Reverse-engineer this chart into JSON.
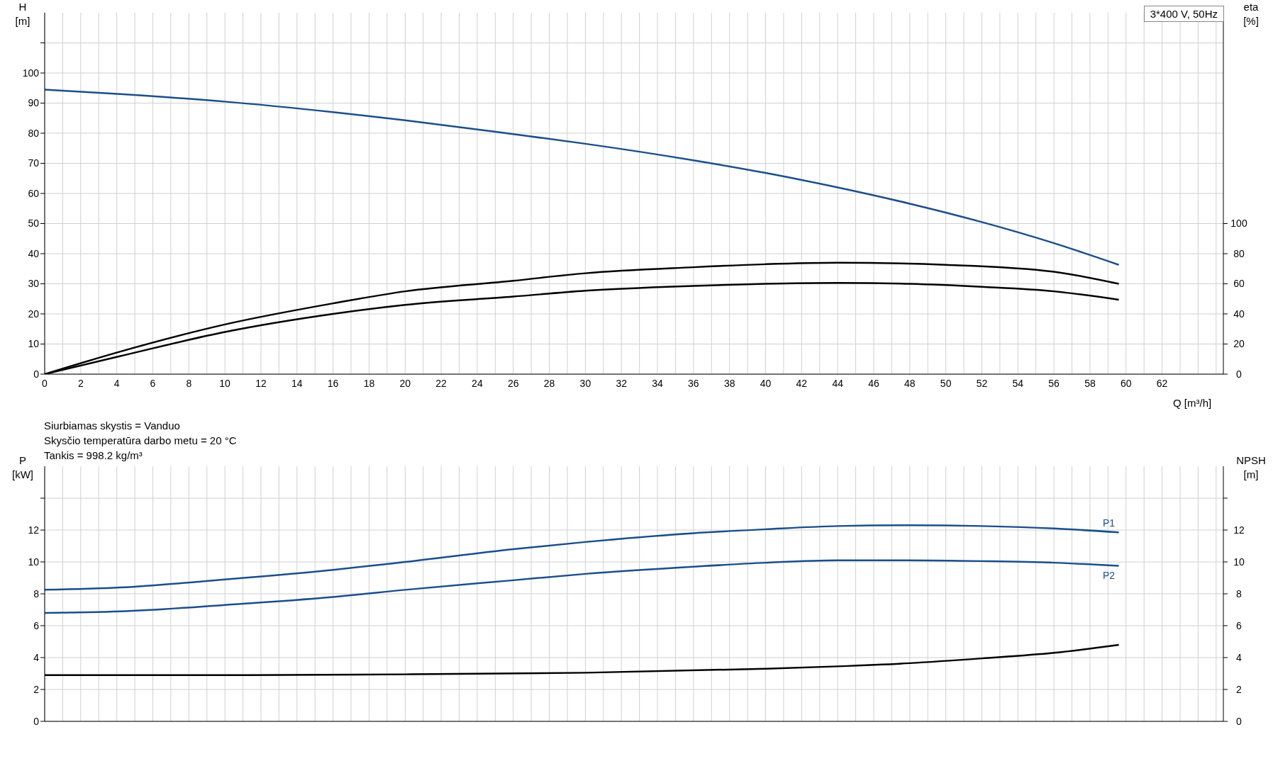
{
  "chart_data": [
    {
      "type": "line",
      "title": "3*400 V, 50Hz",
      "xlabel": "Q [m³/h]",
      "ylabel": "H [m]",
      "y2label": "eta [%]",
      "annotations": [
        "Siurbiamas skystis = Vanduo",
        "Skysčio temperatūra darbo metu = 20 °C",
        "Tankis = 998.2 kg/m³"
      ],
      "xlim": [
        0,
        65.4
      ],
      "xticks": [
        0,
        {
          "value": 1,
          "label": null
        },
        2,
        {
          "value": 3,
          "label": null
        },
        4,
        {
          "value": 5,
          "label": null
        },
        6,
        {
          "value": 7,
          "label": null
        },
        8,
        {
          "value": 9,
          "label": null
        },
        10,
        {
          "value": 11,
          "label": null
        },
        12,
        {
          "value": 13,
          "label": null
        },
        14,
        {
          "value": 15,
          "label": null
        },
        16,
        {
          "value": 17,
          "label": null
        },
        18,
        {
          "value": 19,
          "label": null
        },
        20,
        {
          "value": 21,
          "label": null
        },
        22,
        {
          "value": 23,
          "label": null
        },
        24,
        {
          "value": 25,
          "label": null
        },
        26,
        {
          "value": 27,
          "label": null
        },
        28,
        {
          "value": 29,
          "label": null
        },
        30,
        {
          "value": 31,
          "label": null
        },
        32,
        {
          "value": 33,
          "label": null
        },
        34,
        {
          "value": 35,
          "label": null
        },
        36,
        {
          "value": 37,
          "label": null
        },
        38,
        {
          "value": 39,
          "label": null
        },
        40,
        {
          "value": 41,
          "label": null
        },
        42,
        {
          "value": 43,
          "label": null
        },
        44,
        {
          "value": 45,
          "label": null
        },
        46,
        {
          "value": 47,
          "label": null
        },
        48,
        {
          "value": 49,
          "label": null
        },
        50,
        {
          "value": 51,
          "label": null
        },
        52,
        {
          "value": 53,
          "label": null
        },
        54,
        {
          "value": 55,
          "label": null
        },
        56,
        {
          "value": 57,
          "label": null
        },
        58,
        {
          "value": 59,
          "label": null
        },
        60,
        {
          "value": 61,
          "label": null
        },
        62,
        {
          "value": 63,
          "label": null
        },
        {
          "value": 64,
          "label": null
        },
        {
          "value": 65,
          "label": null
        }
      ],
      "ylim": [
        0,
        120
      ],
      "yticks": [
        0,
        10,
        20,
        30,
        40,
        50,
        60,
        70,
        80,
        90,
        100,
        {
          "value": 110,
          "label": null
        }
      ],
      "y2lim": [
        0,
        240
      ],
      "y2ticks": [
        0,
        20,
        40,
        60,
        80,
        100
      ],
      "grid": true,
      "legend": false,
      "marker": "none",
      "line_style": "solid",
      "series": [
        {
          "color": "#1a4f8a",
          "x": [
            0,
            4.2,
            10,
            16,
            20,
            26,
            30,
            36,
            40,
            44,
            48,
            52,
            56,
            59.6
          ],
          "values": [
            94.5,
            93,
            90.5,
            87,
            84.3,
            79.7,
            76.5,
            71,
            66.8,
            62,
            56.6,
            50.5,
            43.5,
            36.3
          ]
        },
        {
          "color": "#000000",
          "axis": "y2",
          "x": [
            0,
            4.2,
            10,
            16,
            20,
            26,
            30,
            36,
            40,
            44,
            50,
            56,
            59.6
          ],
          "values": [
            0,
            15,
            33,
            47,
            55,
            62,
            67,
            71,
            73,
            74,
            72.6,
            68,
            60
          ]
        },
        {
          "color": "#000000",
          "axis": "y2",
          "x": [
            0,
            4.2,
            10,
            16,
            20,
            26,
            30,
            36,
            40,
            44,
            48,
            52,
            56,
            59.6
          ],
          "values": [
            0,
            12,
            28,
            40,
            46,
            51.5,
            55.4,
            58.6,
            60,
            60.6,
            60,
            58,
            55,
            49.4
          ]
        }
      ]
    },
    {
      "type": "line",
      "ylabel": "P [kW]",
      "y2label": "NPSH [m]",
      "tick_labels": "y",
      "xlim": [
        0,
        65.4
      ],
      "xticks": [
        0,
        1,
        2,
        3,
        4,
        5,
        6,
        7,
        8,
        9,
        10,
        11,
        12,
        13,
        14,
        15,
        16,
        17,
        18,
        19,
        20,
        21,
        22,
        23,
        24,
        25,
        26,
        27,
        28,
        29,
        30,
        31,
        32,
        33,
        34,
        35,
        36,
        37,
        38,
        39,
        40,
        41,
        42,
        43,
        44,
        45,
        46,
        47,
        48,
        49,
        50,
        51,
        52,
        53,
        54,
        55,
        56,
        57,
        58,
        59,
        60,
        61,
        62,
        63,
        64,
        65
      ],
      "ylim": [
        0,
        16
      ],
      "yticks": [
        0,
        2,
        4,
        6,
        8,
        10,
        12,
        {
          "value": 14,
          "label": null
        }
      ],
      "y2lim": [
        0,
        16
      ],
      "y2ticks": [
        0,
        2,
        4,
        6,
        8,
        10,
        12,
        {
          "value": 14,
          "label": null
        }
      ],
      "grid": true,
      "legend": false,
      "marker": "none",
      "line_style": "solid",
      "series": [
        {
          "name": "P1",
          "color": "#1a4f8a",
          "x": [
            0,
            4.2,
            10,
            16,
            20,
            26,
            30,
            36,
            40,
            44,
            48,
            52,
            56,
            59.6
          ],
          "values": [
            8.25,
            8.4,
            8.9,
            9.5,
            10,
            10.8,
            11.25,
            11.8,
            12.05,
            12.25,
            12.3,
            12.25,
            12.1,
            11.85
          ]
        },
        {
          "name": "P2",
          "color": "#1a4f8a",
          "x": [
            0,
            4.2,
            10,
            16,
            20,
            26,
            30,
            36,
            40,
            44,
            48,
            52,
            56,
            59.6
          ],
          "values": [
            6.8,
            6.9,
            7.3,
            7.8,
            8.25,
            8.85,
            9.25,
            9.7,
            9.95,
            10.1,
            10.1,
            10.05,
            9.95,
            9.75
          ]
        },
        {
          "color": "#000000",
          "axis": "y2",
          "x": [
            0,
            4.2,
            10,
            20,
            30,
            40,
            44,
            48,
            52,
            56,
            59.6
          ],
          "values": [
            2.9,
            2.9,
            2.9,
            2.95,
            3.05,
            3.3,
            3.45,
            3.65,
            3.95,
            4.3,
            4.8
          ]
        }
      ]
    }
  ]
}
